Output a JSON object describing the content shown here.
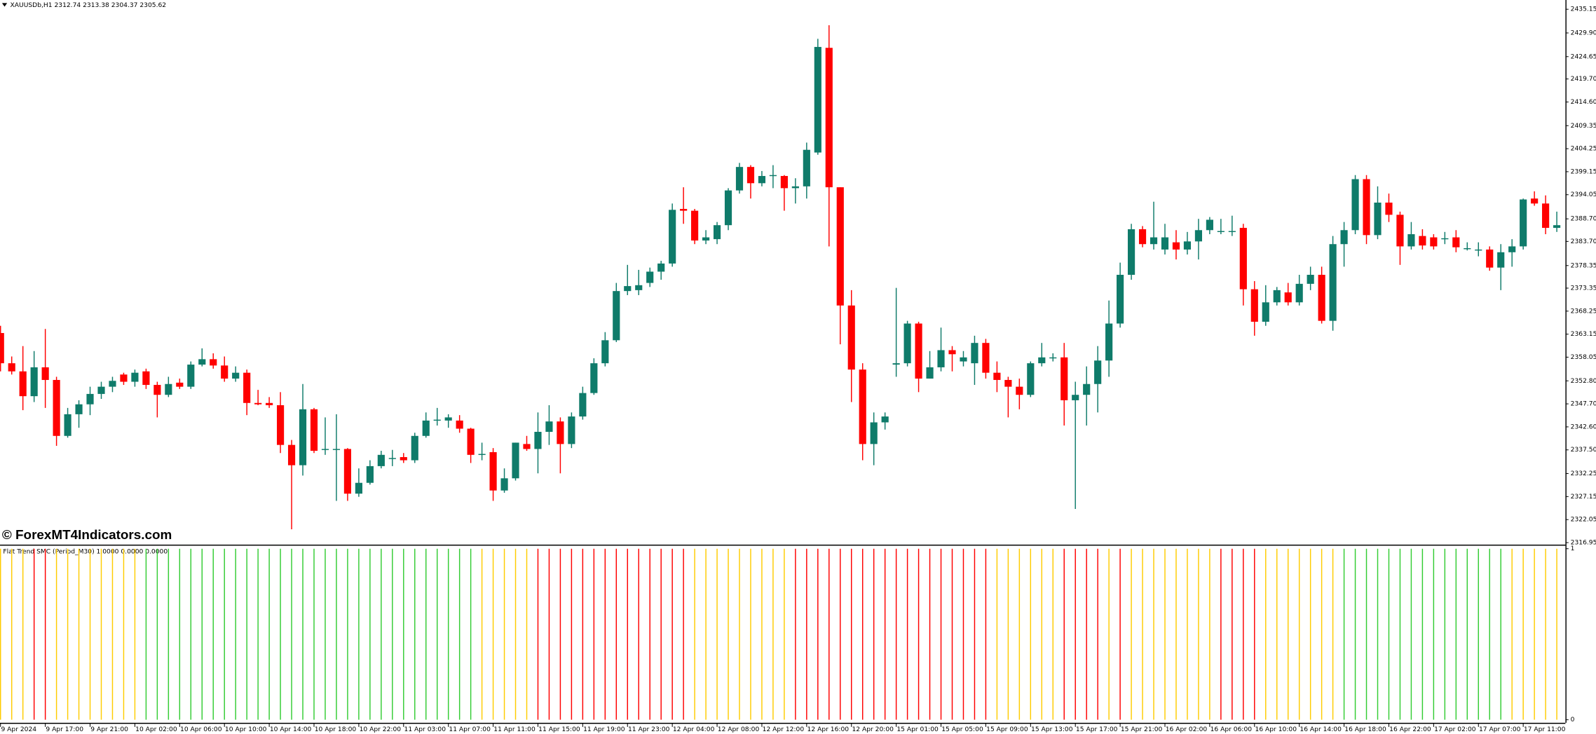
{
  "chart_data": [
    {
      "type": "candlestick",
      "title": "XAUUSDb,H1 2312.74 2313.38 2304.37 2305.62",
      "annotation": "© ForexMT4Indicators.com",
      "up_color": "#0f7b6a",
      "down_color": "#ff0000",
      "ylim": [
        2316.5,
        2437.2
      ],
      "yticks": [
        2435.15,
        {
          "value": 2429.9,
          "label": "2429.90"
        },
        2424.65,
        {
          "value": 2419.7,
          "label": "2419.70"
        },
        {
          "value": 2414.6,
          "label": "2414.60"
        },
        2409.35,
        2404.25,
        2399.15,
        2394.05,
        {
          "value": 2388.7,
          "label": "2388.70"
        },
        {
          "value": 2383.7,
          "label": "2383.70"
        },
        2378.35,
        2373.35,
        2368.25,
        2363.15,
        2358.05,
        {
          "value": 2352.8,
          "label": "2352.80"
        },
        {
          "value": 2347.7,
          "label": "2347.70"
        },
        {
          "value": 2342.6,
          "label": "2342.60"
        },
        {
          "value": 2337.5,
          "label": "2337.50"
        },
        2332.25,
        2327.15,
        2322.05,
        2316.95
      ],
      "categories": [
        "9 Apr 2024",
        null,
        null,
        null,
        "9 Apr 17:00",
        null,
        null,
        null,
        "9 Apr 21:00",
        null,
        null,
        null,
        "10 Apr 02:00",
        null,
        null,
        null,
        "10 Apr 06:00",
        null,
        null,
        null,
        "10 Apr 10:00",
        null,
        null,
        null,
        "10 Apr 14:00",
        null,
        null,
        null,
        "10 Apr 18:00",
        null,
        null,
        null,
        "10 Apr 22:00",
        null,
        null,
        null,
        "11 Apr 03:00",
        null,
        null,
        null,
        "11 Apr 07:00",
        null,
        null,
        null,
        "11 Apr 11:00",
        null,
        null,
        null,
        "11 Apr 15:00",
        null,
        null,
        null,
        "11 Apr 19:00",
        null,
        null,
        null,
        "11 Apr 23:00",
        null,
        null,
        null,
        "12 Apr 04:00",
        null,
        null,
        null,
        "12 Apr 08:00",
        null,
        null,
        null,
        "12 Apr 12:00",
        null,
        null,
        null,
        "12 Apr 16:00",
        null,
        null,
        null,
        "12 Apr 20:00",
        null,
        null,
        null,
        "15 Apr 01:00",
        null,
        null,
        null,
        "15 Apr 05:00",
        null,
        null,
        null,
        "15 Apr 09:00",
        null,
        null,
        null,
        "15 Apr 13:00",
        null,
        null,
        null,
        "15 Apr 17:00",
        null,
        null,
        null,
        "15 Apr 21:00",
        null,
        null,
        null,
        "16 Apr 02:00",
        null,
        null,
        null,
        "16 Apr 06:00",
        null,
        null,
        null,
        "16 Apr 10:00",
        null,
        null,
        null,
        "16 Apr 14:00",
        null,
        null,
        null,
        "16 Apr 18:00",
        null,
        null,
        null,
        "16 Apr 22:00",
        null,
        null,
        null,
        "17 Apr 02:00",
        null,
        null,
        null,
        "17 Apr 07:00",
        null,
        null,
        null,
        "17 Apr 11:00",
        null,
        null,
        null
      ],
      "open": [
        2363.4,
        2356.7,
        2354.9,
        2349.4,
        2355.8,
        2353.0,
        2340.6,
        2345.4,
        2347.6,
        2349.9,
        2351.5,
        2354.2,
        2352.6,
        2354.9,
        2351.9,
        2349.7,
        2352.4,
        2351.5,
        2356.4,
        2357.6,
        2356.2,
        2353.3,
        2354.6,
        2347.9,
        2347.9,
        2347.4,
        2338.6,
        2334.1,
        2346.5,
        2337.5,
        2337.7,
        2337.7,
        2327.8,
        2330.2,
        2333.9,
        2335.7,
        2335.9,
        2335.2,
        2340.6,
        2344.2,
        2344.0,
        2344.0,
        2342.2,
        2336.4,
        2337.0,
        2328.5,
        2331.2,
        2338.8,
        2337.7,
        2341.5,
        2343.8,
        2338.8,
        2344.9,
        2350.1,
        2356.7,
        2361.8,
        2372.7,
        2372.9,
        2374.5,
        2377.0,
        2378.8,
        2390.9,
        2390.5,
        2383.9,
        2384.2,
        2387.3,
        2395.0,
        2400.2,
        2396.6,
        2398.4,
        2398.2,
        2395.5,
        2395.9,
        2403.4,
        2426.6,
        2395.7,
        2369.5,
        2355.3,
        2338.8,
        2343.6,
        2356.4,
        2356.7,
        2365.5,
        2353.3,
        2355.8,
        2359.6,
        2357.1,
        2356.7,
        2361.2,
        2354.6,
        2353.0,
        2351.5,
        2349.7,
        2356.7,
        2358.0,
        2358.0,
        2348.5,
        2349.7,
        2352.1,
        2357.3,
        2365.5,
        2376.3,
        2386.4,
        2383.1,
        2381.9,
        2383.5,
        2381.9,
        2383.7,
        2386.2,
        2386.0,
        2386.0,
        2386.7,
        2373.1,
        2365.9,
        2370.2,
        2372.4,
        2370.2,
        2374.3,
        2376.3,
        2366.1,
        2383.1,
        2386.2,
        2397.5,
        2385.1,
        2392.3,
        2389.6,
        2382.6,
        2384.9,
        2384.6,
        2384.4,
        2384.6,
        2382.2,
        2381.9,
        2381.9,
        2377.9,
        2381.3,
        2382.6,
        2393.2,
        2392.1,
        2386.7
      ],
      "high": [
        2365.0,
        2358.2,
        2360.5,
        2359.4,
        2364.3,
        2353.7,
        2346.8,
        2348.5,
        2351.5,
        2352.6,
        2353.7,
        2354.6,
        2355.3,
        2355.5,
        2352.6,
        2353.7,
        2353.3,
        2357.1,
        2360.0,
        2358.9,
        2358.2,
        2356.0,
        2355.3,
        2350.8,
        2349.2,
        2350.3,
        2339.7,
        2352.1,
        2346.8,
        2344.7,
        2345.4,
        2337.9,
        2333.4,
        2335.2,
        2337.3,
        2337.5,
        2336.8,
        2341.3,
        2345.8,
        2346.8,
        2345.4,
        2345.2,
        2342.4,
        2339.1,
        2337.9,
        2333.4,
        2339.1,
        2340.6,
        2345.8,
        2347.4,
        2344.7,
        2345.8,
        2351.5,
        2357.8,
        2363.6,
        2374.5,
        2378.5,
        2377.4,
        2377.9,
        2379.4,
        2392.1,
        2395.7,
        2390.9,
        2386.2,
        2388.0,
        2395.5,
        2401.1,
        2400.6,
        2399.3,
        2400.6,
        2398.4,
        2397.7,
        2405.6,
        2428.6,
        2431.6,
        2395.7,
        2372.9,
        2356.7,
        2345.8,
        2345.8,
        2373.4,
        2366.1,
        2365.9,
        2359.4,
        2364.6,
        2360.5,
        2359.4,
        2362.8,
        2362.1,
        2357.1,
        2353.7,
        2353.3,
        2357.1,
        2361.2,
        2358.9,
        2361.2,
        2352.6,
        2356.0,
        2360.5,
        2370.6,
        2379.0,
        2387.6,
        2387.1,
        2392.5,
        2387.6,
        2386.2,
        2385.8,
        2388.7,
        2389.1,
        2388.7,
        2389.4,
        2387.6,
        2374.9,
        2374.0,
        2373.6,
        2374.5,
        2376.3,
        2378.1,
        2378.1,
        2384.9,
        2388.0,
        2398.4,
        2398.4,
        2395.9,
        2394.3,
        2390.3,
        2388.0,
        2386.4,
        2385.3,
        2385.8,
        2386.2,
        2383.5,
        2383.5,
        2382.6,
        2383.1,
        2384.2,
        2393.2,
        2394.8,
        2393.9,
        2390.3
      ],
      "low": [
        2354.9,
        2354.2,
        2346.3,
        2348.1,
        2346.8,
        2338.4,
        2340.2,
        2342.4,
        2345.2,
        2348.8,
        2350.3,
        2351.9,
        2351.5,
        2351.0,
        2344.7,
        2349.2,
        2351.0,
        2351.0,
        2356.0,
        2355.5,
        2352.6,
        2352.6,
        2345.2,
        2347.4,
        2346.8,
        2336.8,
        2319.9,
        2331.8,
        2336.8,
        2336.4,
        2326.2,
        2326.2,
        2327.1,
        2329.8,
        2333.4,
        2333.9,
        2334.6,
        2334.6,
        2340.2,
        2342.9,
        2342.4,
        2341.3,
        2334.6,
        2335.2,
        2326.2,
        2328.0,
        2330.7,
        2337.3,
        2332.3,
        2338.6,
        2332.3,
        2337.9,
        2344.2,
        2349.7,
        2356.0,
        2361.4,
        2371.8,
        2371.8,
        2373.6,
        2375.2,
        2378.1,
        2387.6,
        2383.1,
        2383.1,
        2383.1,
        2386.2,
        2394.3,
        2393.2,
        2395.9,
        2395.5,
        2390.5,
        2392.1,
        2393.2,
        2402.9,
        2382.6,
        2360.9,
        2348.1,
        2335.2,
        2334.1,
        2342.0,
        2353.7,
        2356.0,
        2350.3,
        2353.3,
        2354.9,
        2354.9,
        2356.0,
        2351.9,
        2353.3,
        2350.3,
        2344.7,
        2346.5,
        2349.2,
        2356.0,
        2357.1,
        2342.9,
        2324.4,
        2342.9,
        2345.8,
        2353.7,
        2364.6,
        2375.2,
        2382.4,
        2381.9,
        2380.8,
        2379.7,
        2380.8,
        2379.7,
        2385.3,
        2385.3,
        2384.9,
        2369.5,
        2362.8,
        2365.0,
        2369.5,
        2369.5,
        2369.5,
        2372.9,
        2365.5,
        2363.9,
        2378.1,
        2385.3,
        2383.1,
        2384.2,
        2388.0,
        2378.5,
        2381.9,
        2381.9,
        2381.9,
        2383.1,
        2381.3,
        2381.7,
        2380.4,
        2377.2,
        2372.9,
        2378.1,
        2381.9,
        2391.6,
        2385.3,
        2385.8
      ],
      "close": [
        2356.7,
        2354.9,
        2349.4,
        2355.8,
        2353.0,
        2340.6,
        2345.4,
        2347.6,
        2349.9,
        2351.5,
        2352.8,
        2352.6,
        2354.6,
        2351.9,
        2349.7,
        2352.1,
        2351.5,
        2356.4,
        2357.6,
        2356.2,
        2353.3,
        2354.6,
        2347.9,
        2347.6,
        2347.4,
        2338.6,
        2334.1,
        2346.5,
        2337.3,
        2337.7,
        2337.7,
        2327.8,
        2330.2,
        2333.9,
        2336.4,
        2335.7,
        2335.2,
        2340.6,
        2344.0,
        2344.2,
        2344.7,
        2342.2,
        2336.4,
        2336.6,
        2328.5,
        2331.2,
        2339.1,
        2337.7,
        2341.5,
        2343.8,
        2338.8,
        2344.9,
        2350.1,
        2356.7,
        2361.8,
        2372.7,
        2373.8,
        2374.0,
        2377.0,
        2378.8,
        2390.7,
        2390.5,
        2383.9,
        2384.6,
        2387.3,
        2395.0,
        2400.2,
        2396.6,
        2398.2,
        2398.4,
        2395.5,
        2395.9,
        2404.0,
        2426.8,
        2395.7,
        2369.5,
        2355.3,
        2338.8,
        2343.6,
        2344.9,
        2356.7,
        2365.5,
        2353.3,
        2355.8,
        2359.6,
        2358.7,
        2358.0,
        2361.2,
        2354.6,
        2353.0,
        2351.5,
        2349.7,
        2356.7,
        2358.0,
        2358.0,
        2348.5,
        2349.7,
        2352.1,
        2357.3,
        2365.5,
        2376.3,
        2386.4,
        2383.1,
        2384.6,
        2384.6,
        2381.9,
        2383.7,
        2386.2,
        2388.5,
        2386.0,
        2386.0,
        2373.1,
        2365.9,
        2370.2,
        2372.9,
        2370.2,
        2374.3,
        2376.3,
        2366.1,
        2383.1,
        2386.2,
        2397.5,
        2385.1,
        2392.3,
        2389.6,
        2382.6,
        2385.3,
        2382.8,
        2382.6,
        2384.4,
        2382.4,
        2382.2,
        2381.9,
        2377.9,
        2381.3,
        2382.6,
        2393.0,
        2392.1,
        2386.7,
        2387.3
      ]
    },
    {
      "type": "bar",
      "title": "Flat Trend SMC (Period_M30) 1.0000 0.0000 0.0000",
      "ylim": [
        0,
        1
      ],
      "yticks": [
        1,
        0
      ],
      "values": [
        1,
        1,
        1,
        1,
        1,
        1,
        1,
        1,
        1,
        1,
        1,
        1,
        1,
        1,
        1,
        1,
        1,
        1,
        1,
        1,
        1,
        1,
        1,
        1,
        1,
        1,
        1,
        1,
        1,
        1,
        1,
        1,
        1,
        1,
        1,
        1,
        1,
        1,
        1,
        1,
        1,
        1,
        1,
        1,
        1,
        1,
        1,
        1,
        1,
        1,
        1,
        1,
        1,
        1,
        1,
        1,
        1,
        1,
        1,
        1,
        1,
        1,
        1,
        1,
        1,
        1,
        1,
        1,
        1,
        1,
        1,
        1,
        1,
        1,
        1,
        1,
        1,
        1,
        1,
        1,
        1,
        1,
        1,
        1,
        1,
        1,
        1,
        1,
        1,
        1,
        1,
        1,
        1,
        1,
        1,
        1,
        1,
        1,
        1,
        1,
        1,
        1,
        1,
        1,
        1,
        1,
        1,
        1,
        1,
        1,
        1,
        1,
        1,
        1,
        1,
        1,
        1,
        1,
        1,
        1,
        1,
        1,
        1,
        1,
        1,
        1,
        1,
        1,
        1,
        1,
        1,
        1,
        1,
        1,
        1,
        1,
        1,
        1,
        1,
        1
      ],
      "colors": [
        "#fc0",
        "#fc0",
        "#fc0",
        "#f00",
        "#f00",
        "#fc0",
        "#fc0",
        "#fc0",
        "#fc0",
        "#fc0",
        "#fc0",
        "#fc0",
        "#fc0",
        "#3c3",
        "#3c3",
        "#3c3",
        "#3c3",
        "#3c3",
        "#3c3",
        "#3c3",
        "#3c3",
        "#3c3",
        "#3c3",
        "#3c3",
        "#3c3",
        "#3c3",
        "#3c3",
        "#3c3",
        "#3c3",
        "#3c3",
        "#3c3",
        "#3c3",
        "#3c3",
        "#3c3",
        "#3c3",
        "#3c3",
        "#3c3",
        "#3c3",
        "#3c3",
        "#3c3",
        "#3c3",
        "#3c3",
        "#3c3",
        "#fc0",
        "#fc0",
        "#fc0",
        "#fc0",
        "#fc0",
        "#f00",
        "#f00",
        "#f00",
        "#f00",
        "#f00",
        "#f00",
        "#f00",
        "#f00",
        "#f00",
        "#f00",
        "#f00",
        "#f00",
        "#f00",
        "#f00",
        "#fc0",
        "#fc0",
        "#fc0",
        "#fc0",
        "#fc0",
        "#fc0",
        "#fc0",
        "#fc0",
        "#fc0",
        "#f00",
        "#f00",
        "#f00",
        "#f00",
        "#f00",
        "#f00",
        "#f00",
        "#f00",
        "#f00",
        "#f00",
        "#f00",
        "#f00",
        "#f00",
        "#f00",
        "#f00",
        "#f00",
        "#f00",
        "#f00",
        "#fc0",
        "#fc0",
        "#fc0",
        "#fc0",
        "#fc0",
        "#fc0",
        "#f00",
        "#f00",
        "#f00",
        "#f00",
        "#fc0",
        "#f00",
        "#fc0",
        "#fc0",
        "#fc0",
        "#fc0",
        "#fc0",
        "#fc0",
        "#fc0",
        "#fc0",
        "#f00",
        "#f00",
        "#f00",
        "#f00",
        "#fc0",
        "#fc0",
        "#fc0",
        "#fc0",
        "#fc0",
        "#fc0",
        "#fc0",
        "#3c3",
        "#3c3",
        "#3c3",
        "#3c3",
        "#3c3",
        "#3c3",
        "#3c3",
        "#3c3",
        "#3c3",
        "#3c3",
        "#3c3",
        "#3c3",
        "#3c3",
        "#3c3",
        "#3c3",
        "#fc0",
        "#fc0",
        "#fc0",
        "#fc0",
        "#fc0"
      ]
    }
  ]
}
